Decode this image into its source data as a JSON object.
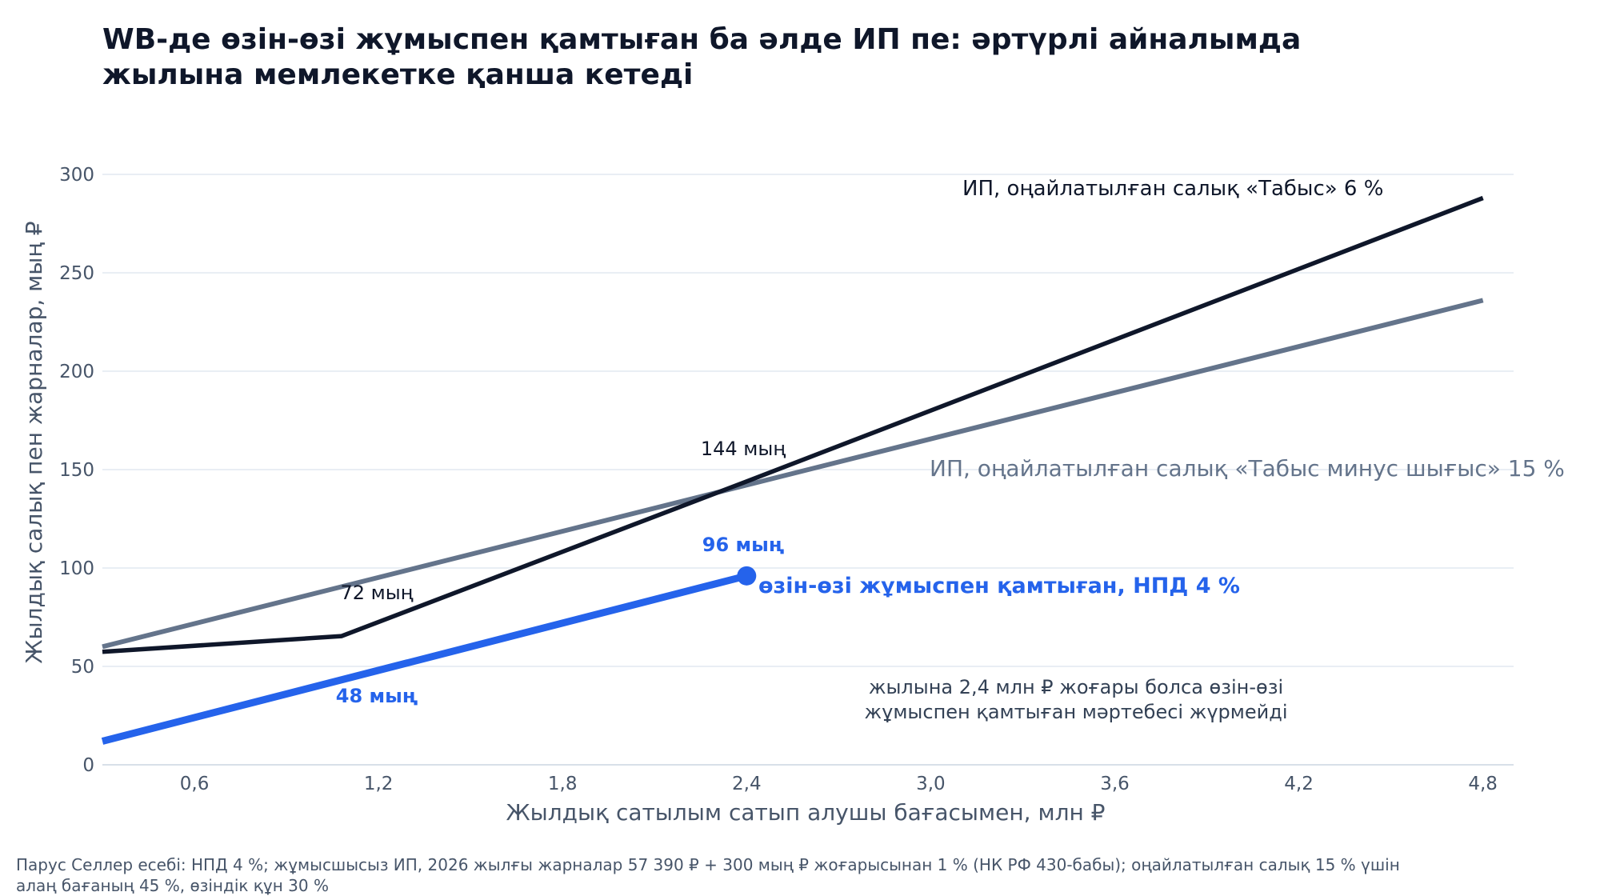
{
  "title_lines": [
    "WB-де өзін-өзі жұмыспен қамтыған ба әлде ИП пе: әртүрлі айналымда",
    "жылына мемлекетке қанша кетеді"
  ],
  "footnote_lines": [
    "Парус Селлер есебі: НПД 4 %; жұмысшысыз ИП, 2026 жылғы жарналар 57 390 ₽ + 300 мың ₽ жоғарысынан 1 % (НК РФ 430-бабы); оңайлатылған салық 15 % үшін",
    "алаң бағаның 45 %, өзіндік құн 30 %"
  ],
  "chart_data": {
    "type": "line",
    "xlabel": "Жылдық сатылым сатып алушы бағасымен, млн ₽",
    "ylabel": "Жылдық салық пен жарналар, мың ₽",
    "xlim": [
      0.3,
      4.9
    ],
    "ylim": [
      0,
      300
    ],
    "x_ticks": [
      0.6,
      1.2,
      1.8,
      2.4,
      3.0,
      3.6,
      4.2,
      4.8
    ],
    "x_tick_labels": [
      "0,6",
      "1,2",
      "1,8",
      "2,4",
      "3,0",
      "3,6",
      "4,2",
      "4,8"
    ],
    "y_ticks": [
      0,
      50,
      100,
      150,
      200,
      250,
      300
    ],
    "y_tick_labels": [
      "0",
      "50",
      "100",
      "150",
      "200",
      "250",
      "300"
    ],
    "grid": "horizontal",
    "series": [
      {
        "name": "ИП, оңайлатылған салық «Табыс минус шығыс» 15 %",
        "color": "#64748b",
        "x": [
          0.3,
          4.8
        ],
        "y": [
          60,
          236
        ]
      },
      {
        "name": "ИП, оңайлатылған салық «Табыс» 6 %",
        "color": "#0f172a",
        "x": [
          0.3,
          1.08,
          2.4,
          4.8
        ],
        "y": [
          57.4,
          65.4,
          144,
          288
        ]
      },
      {
        "name": "өзін-өзі жұмыспен қамтыған, НПД 4 %",
        "color": "#2563eb",
        "x": [
          0.3,
          2.4
        ],
        "y": [
          12,
          96
        ],
        "end_marker": true
      }
    ],
    "annotations": [
      {
        "text": "72 мың",
        "x": 1.2,
        "y": 72,
        "color": "#0f172a",
        "bold": false
      },
      {
        "text": "144 мың",
        "x": 2.4,
        "y": 144,
        "color": "#0f172a",
        "bold": false
      },
      {
        "text": "48 мың",
        "x": 1.2,
        "y": 48,
        "color": "#2563eb",
        "bold": true
      },
      {
        "text": "96 мың",
        "x": 2.4,
        "y": 96,
        "color": "#2563eb",
        "bold": true
      }
    ],
    "note_lines": [
      "жылына 2,4 млн ₽ жоғары болса өзін-өзі",
      "жұмыспен қамтыған мәртебесі жүрмейді"
    ]
  }
}
